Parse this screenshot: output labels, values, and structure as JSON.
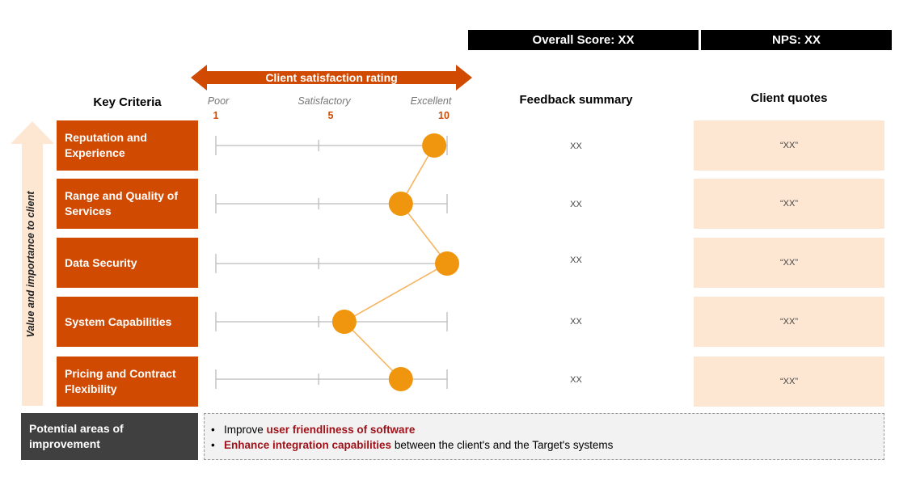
{
  "scores": {
    "overall": "Overall Score: XX",
    "nps": "NPS: XX"
  },
  "headers": {
    "key_criteria": "Key Criteria",
    "rating": "Client satisfaction rating",
    "feedback": "Feedback summary",
    "quotes": "Client quotes"
  },
  "scale": {
    "labels": [
      "Poor",
      "Satisfactory",
      "Excellent"
    ],
    "numbers": [
      "1",
      "5",
      "10"
    ]
  },
  "axis_label": "Value and importance to client",
  "criteria": [
    {
      "line1": "Reputation and",
      "line2": "Experience",
      "feedback": "XX",
      "quote": "“XX”"
    },
    {
      "line1": "Range and Quality of",
      "line2": "Services",
      "feedback": "XX",
      "quote": "“XX”"
    },
    {
      "line1": "Data Security",
      "line2": "",
      "feedback": "XX",
      "quote": "“XX”"
    },
    {
      "line1": "System Capabilities",
      "line2": "",
      "feedback": "XX",
      "quote": "“XX”"
    },
    {
      "line1": "Pricing and Contract",
      "line2": "Flexibility",
      "feedback": "XX",
      "quote": "“XX”"
    }
  ],
  "improvement": {
    "label_line1": "Potential areas of",
    "label_line2": "improvement",
    "items": [
      {
        "pre": "Improve ",
        "highlight": "user friendliness of software",
        "post": ""
      },
      {
        "pre": "",
        "highlight": "Enhance integration capabilities",
        "post": " between the client's and the Target's systems"
      }
    ]
  },
  "colors": {
    "accent": "#d04a02",
    "marker": "#f0960e",
    "connector": "#f5b560",
    "quote_bg": "#fde7d3",
    "dark": "#404040",
    "highlight_text": "#a01219"
  },
  "chart_data": {
    "type": "line",
    "categories": [
      "Reputation and Experience",
      "Range and Quality of Services",
      "Data Security",
      "System Capabilities",
      "Pricing and Contract Flexibility"
    ],
    "values": [
      9.5,
      8.2,
      10,
      6.0,
      8.2
    ],
    "xlabel": "Client satisfaction rating",
    "ylabel": "Value and importance to client",
    "xlim": [
      1,
      10
    ],
    "ticks": [
      1,
      5,
      10
    ]
  }
}
